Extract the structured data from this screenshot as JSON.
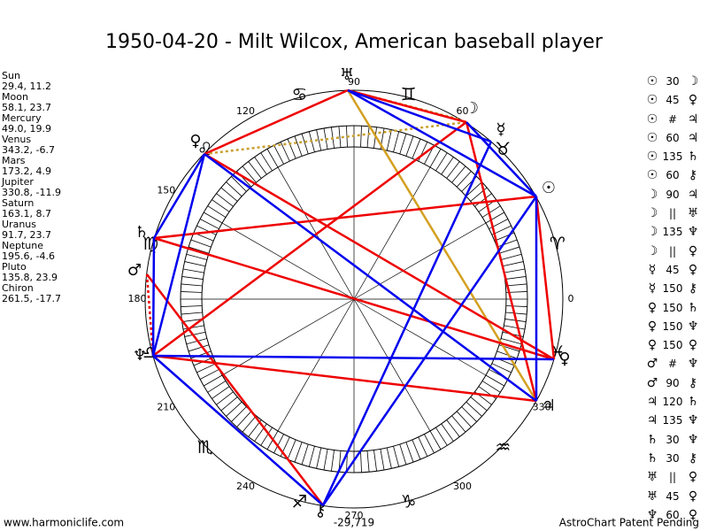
{
  "title": "1950-04-20 - Milt Wilcox, American baseball player",
  "planets": [
    {
      "name": "Sun",
      "position": "29.4, 11.2",
      "glyph": "☉"
    },
    {
      "name": "Moon",
      "position": "58.1, 23.7",
      "glyph": "☽"
    },
    {
      "name": "Mercury",
      "position": "49.0, 19.9",
      "glyph": "☿"
    },
    {
      "name": "Venus",
      "position": "343.2, -6.7",
      "glyph": "♀"
    },
    {
      "name": "Mars",
      "position": "173.2, 4.9",
      "glyph": "♂"
    },
    {
      "name": "Jupiter",
      "position": "330.8, -11.9",
      "glyph": "♃"
    },
    {
      "name": "Saturn",
      "position": "163.1, 8.7",
      "glyph": "♄"
    },
    {
      "name": "Uranus",
      "position": "91.7, 23.7",
      "glyph": "♅"
    },
    {
      "name": "Neptune",
      "position": "195.6, -4.6",
      "glyph": "♆"
    },
    {
      "name": "Pluto",
      "position": "135.8, 23.9",
      "glyph": "♀"
    },
    {
      "name": "Chiron",
      "position": "261.5, -17.7",
      "glyph": "⚷"
    }
  ],
  "aspects": [
    {
      "from": "☉",
      "aspect": "30",
      "to": "☽"
    },
    {
      "from": "☉",
      "aspect": "45",
      "to": "♀"
    },
    {
      "from": "☉",
      "aspect": "#",
      "to": "♃"
    },
    {
      "from": "☉",
      "aspect": "60",
      "to": "♃"
    },
    {
      "from": "☉",
      "aspect": "135",
      "to": "♄"
    },
    {
      "from": "☉",
      "aspect": "60",
      "to": "⚷"
    },
    {
      "from": "☽",
      "aspect": "90",
      "to": "♃"
    },
    {
      "from": "☽",
      "aspect": "||",
      "to": "♅"
    },
    {
      "from": "☽",
      "aspect": "135",
      "to": "♆"
    },
    {
      "from": "☽",
      "aspect": "||",
      "to": "♀"
    },
    {
      "from": "☿",
      "aspect": "45",
      "to": "♀"
    },
    {
      "from": "☿",
      "aspect": "150",
      "to": "⚷"
    },
    {
      "from": "♀",
      "aspect": "150",
      "to": "♄"
    },
    {
      "from": "♀",
      "aspect": "150",
      "to": "♆"
    },
    {
      "from": "♀",
      "aspect": "150",
      "to": "♀"
    },
    {
      "from": "♂",
      "aspect": "#",
      "to": "♆"
    },
    {
      "from": "♂",
      "aspect": "90",
      "to": "⚷"
    },
    {
      "from": "♃",
      "aspect": "120",
      "to": "♄"
    },
    {
      "from": "♃",
      "aspect": "135",
      "to": "♆"
    },
    {
      "from": "♄",
      "aspect": "30",
      "to": "♆"
    },
    {
      "from": "♄",
      "aspect": "30",
      "to": "⚷"
    },
    {
      "from": "♅",
      "aspect": "||",
      "to": "♀"
    },
    {
      "from": "♅",
      "aspect": "45",
      "to": "♀"
    },
    {
      "from": "♆",
      "aspect": "60",
      "to": "♀"
    }
  ],
  "degree_labels": [
    0,
    60,
    90,
    120,
    150,
    180,
    210,
    240,
    270,
    300,
    330
  ],
  "zodiac": [
    "♈",
    "♉",
    "♊",
    "♋",
    "♌",
    "♍",
    "♎",
    "♏",
    "♐",
    "♑",
    "♒",
    "♓"
  ],
  "bottom_value": "-29,719",
  "footer_left": "www.harmoniclife.com",
  "footer_right": "AstroChart Patent Pending"
}
